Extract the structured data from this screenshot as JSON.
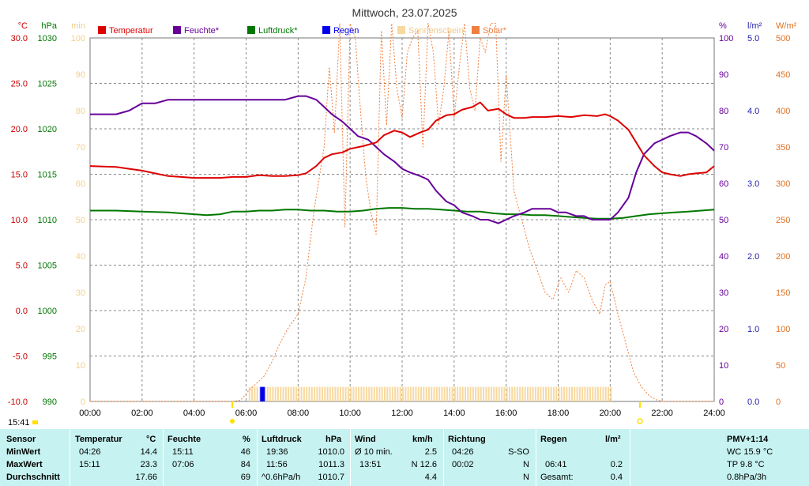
{
  "chart_data": {
    "type": "line",
    "title": "Mittwoch, 23.07.2025",
    "time_label": "15:41",
    "x_ticks": [
      "00:00",
      "02:00",
      "04:00",
      "06:00",
      "08:00",
      "10:00",
      "12:00",
      "14:00",
      "16:00",
      "18:00",
      "20:00",
      "22:00",
      "24:00"
    ],
    "axes": {
      "temp": {
        "unit": "°C",
        "range": [
          -10,
          30
        ],
        "ticks": [
          "30.0",
          "25.0",
          "20.0",
          "15.0",
          "10.0",
          "5.0",
          "0.0",
          "-5.0",
          "-10.0"
        ],
        "color": "#cc0000"
      },
      "press": {
        "unit": "hPa",
        "range": [
          990,
          1030
        ],
        "ticks": [
          "1030",
          "1025",
          "1020",
          "1015",
          "1010",
          "1005",
          "1000",
          "995",
          "990"
        ],
        "color": "#007700"
      },
      "sun": {
        "unit": "min",
        "range": [
          0,
          100
        ],
        "ticks": [
          "100",
          "90",
          "80",
          "70",
          "60",
          "50",
          "40",
          "30",
          "20",
          "10",
          "0"
        ],
        "color": "#f0d090"
      },
      "hum": {
        "unit": "%",
        "range": [
          0,
          100
        ],
        "ticks": [
          "100",
          "90",
          "80",
          "70",
          "60",
          "50",
          "40",
          "30",
          "20",
          "10",
          "0"
        ],
        "color": "#660099"
      },
      "rain": {
        "unit": "l/m²",
        "range": [
          0,
          5
        ],
        "ticks": [
          "5.0",
          "4.0",
          "3.0",
          "2.0",
          "1.0",
          "0.0"
        ],
        "color": "#2222aa"
      },
      "solar": {
        "unit": "W/m²",
        "range": [
          0,
          500
        ],
        "ticks": [
          "500",
          "450",
          "400",
          "350",
          "300",
          "250",
          "200",
          "150",
          "100",
          "50",
          "0"
        ],
        "color": "#e07020"
      }
    },
    "legend": [
      {
        "name": "Temperatur",
        "color": "#dd0000"
      },
      {
        "name": "Feuchte*",
        "color": "#660099"
      },
      {
        "name": "Luftdruck*",
        "color": "#007700"
      },
      {
        "name": "Regen",
        "color": "#0000ee"
      },
      {
        "name": "Sonnenschein",
        "color": "#f7d9a0"
      },
      {
        "name": "Solar*",
        "color": "#f08040"
      }
    ],
    "series": {
      "temperatur": {
        "color": "#dd0000",
        "x": [
          0,
          1,
          1.5,
          2,
          2.5,
          3,
          3.5,
          4,
          4.5,
          5,
          5.5,
          6,
          6.5,
          7,
          7.5,
          8,
          8.3,
          8.7,
          9,
          9.3,
          9.7,
          10,
          10.5,
          11,
          11.3,
          11.7,
          12,
          12.3,
          12.7,
          13,
          13.3,
          13.7,
          14,
          14.3,
          14.7,
          15,
          15.3,
          15.7,
          16,
          16.3,
          16.7,
          17,
          17.5,
          18,
          18.5,
          19,
          19.5,
          19.8,
          20,
          20.3,
          20.7,
          21,
          21.3,
          21.7,
          22,
          22.3,
          22.7,
          23,
          23.3,
          23.7,
          24
        ],
        "y": [
          15.9,
          15.8,
          15.6,
          15.4,
          15.1,
          14.8,
          14.7,
          14.6,
          14.6,
          14.6,
          14.7,
          14.7,
          14.9,
          14.8,
          14.8,
          14.9,
          15.1,
          15.9,
          16.8,
          17.2,
          17.4,
          17.8,
          18.1,
          18.5,
          19.3,
          19.8,
          19.6,
          19.1,
          19.6,
          19.9,
          20.9,
          21.5,
          21.6,
          22.1,
          22.4,
          22.9,
          22.0,
          22.2,
          21.6,
          21.2,
          21.2,
          21.3,
          21.3,
          21.4,
          21.3,
          21.5,
          21.4,
          21.6,
          21.4,
          20.9,
          19.9,
          18.5,
          17.1,
          15.9,
          15.2,
          15.0,
          14.8,
          15.0,
          15.1,
          15.2,
          15.9
        ]
      },
      "feuchte": {
        "color": "#660099",
        "x": [
          0,
          1,
          1.5,
          2,
          2.5,
          3,
          3.5,
          4,
          5,
          6,
          6.5,
          7,
          7.5,
          8,
          8.3,
          8.7,
          9,
          9.3,
          9.7,
          10,
          10.3,
          10.7,
          11,
          11.3,
          11.7,
          12,
          12.3,
          12.7,
          13,
          13.3,
          13.7,
          14,
          14.3,
          14.7,
          15,
          15.3,
          15.7,
          16,
          16.3,
          16.7,
          17,
          17.3,
          17.7,
          18,
          18.3,
          18.7,
          19,
          19.3,
          19.7,
          20,
          20.3,
          20.7,
          21,
          21.3,
          21.7,
          22,
          22.3,
          22.7,
          23,
          23.3,
          23.7,
          24
        ],
        "y": [
          79,
          79,
          80,
          82,
          82,
          83,
          83,
          83,
          83,
          83,
          83,
          83,
          83,
          84,
          84,
          83,
          81,
          79,
          77,
          75,
          73,
          72,
          70,
          68,
          66,
          64,
          63,
          62,
          61,
          58,
          55,
          54,
          52,
          51,
          50,
          50,
          49,
          50,
          51,
          52,
          53,
          53,
          53,
          52,
          52,
          51,
          51,
          50,
          50,
          50,
          52,
          56,
          63,
          68,
          71,
          72,
          73,
          74,
          74,
          73,
          71,
          69
        ]
      },
      "luftdruck": {
        "color": "#007700",
        "x": [
          0,
          1,
          2,
          3,
          4,
          4.5,
          5,
          5.5,
          6,
          6.5,
          7,
          7.5,
          8,
          8.5,
          9,
          9.5,
          10,
          10.5,
          11,
          11.5,
          12,
          12.5,
          13,
          13.5,
          14,
          14.5,
          15,
          15.5,
          16,
          16.5,
          17,
          17.5,
          18,
          18.5,
          19,
          19.5,
          20,
          20.5,
          21,
          21.5,
          22,
          22.5,
          23,
          23.5,
          24
        ],
        "y": [
          1011,
          1011,
          1010.9,
          1010.8,
          1010.6,
          1010.5,
          1010.6,
          1010.9,
          1010.9,
          1011,
          1011,
          1011.1,
          1011.1,
          1011,
          1011,
          1010.9,
          1010.9,
          1011,
          1011.2,
          1011.3,
          1011.3,
          1011.2,
          1011.2,
          1011.1,
          1011,
          1010.9,
          1010.9,
          1010.7,
          1010.6,
          1010.6,
          1010.5,
          1010.5,
          1010.4,
          1010.3,
          1010.2,
          1010.1,
          1010.1,
          1010.2,
          1010.4,
          1010.6,
          1010.7,
          1010.8,
          1010.9,
          1011,
          1011.1
        ]
      },
      "solar": {
        "color": "#f08040",
        "x": [
          0,
          5.5,
          5.8,
          6.1,
          6.4,
          6.7,
          7,
          7.3,
          7.6,
          8,
          8.3,
          8.6,
          9,
          9.2,
          9.4,
          9.6,
          9.8,
          10,
          10.2,
          10.4,
          10.6,
          10.8,
          11,
          11.2,
          11.4,
          11.6,
          11.8,
          12,
          12.2,
          12.4,
          12.6,
          12.8,
          13,
          13.2,
          13.4,
          13.6,
          13.8,
          14,
          14.2,
          14.4,
          14.6,
          14.8,
          15,
          15.2,
          15.4,
          15.6,
          15.8,
          16,
          16.3,
          16.6,
          16.9,
          17.2,
          17.5,
          17.8,
          18.1,
          18.4,
          18.7,
          19,
          19.3,
          19.6,
          19.8,
          20,
          20.3,
          20.6,
          20.9,
          21.2,
          21.5,
          21.8,
          22,
          24
        ],
        "y": [
          0,
          0,
          2,
          15,
          25,
          35,
          55,
          80,
          100,
          120,
          170,
          260,
          350,
          460,
          370,
          520,
          240,
          520,
          500,
          400,
          310,
          260,
          230,
          510,
          380,
          520,
          430,
          390,
          480,
          500,
          510,
          350,
          520,
          480,
          380,
          430,
          510,
          390,
          460,
          520,
          430,
          400,
          500,
          480,
          520,
          520,
          330,
          450,
          290,
          250,
          210,
          180,
          150,
          140,
          170,
          150,
          180,
          170,
          140,
          120,
          160,
          165,
          120,
          80,
          40,
          20,
          8,
          2,
          0,
          0
        ]
      },
      "regen": {
        "color": "#0000ee",
        "note": "Balken 06:41",
        "x": [
          6.63
        ],
        "y": [
          0.2
        ]
      },
      "sonnenschein": {
        "color": "#f7d9a0",
        "x_start": 6.1,
        "x_end": 20.1,
        "y": 4
      }
    }
  },
  "stats": {
    "headers": [
      {
        "label": "Sensor"
      },
      {
        "label": "Temperatur",
        "unit": "°C"
      },
      {
        "label": "Feuchte",
        "unit": "%"
      },
      {
        "label": "Luftdruck",
        "unit": "hPa"
      },
      {
        "label": "Wind",
        "unit": "km/h"
      },
      {
        "label": "Richtung"
      },
      {
        "label": "Regen",
        "unit": "l/m²"
      },
      {
        "label": "PMV+1:14"
      }
    ],
    "rows": [
      {
        "label": "MinWert",
        "temp_time": "04:26",
        "temp_val": "14.4",
        "hum_time": "15:11",
        "hum_val": "46",
        "press_time": "19:36",
        "press_val": "1010.0",
        "wind_time": "Ø 10 min.",
        "wind_val": "2.5",
        "dir_time": "04:26",
        "dir_val": "S-SO",
        "rain_time": "",
        "rain_val": "",
        "pmv": "WC 15.9 °C"
      },
      {
        "label": "MaxWert",
        "temp_time": "15:11",
        "temp_val": "23.3",
        "hum_time": "07:06",
        "hum_val": "84",
        "press_time": "11:56",
        "press_val": "1011.3",
        "wind_time": "13:51",
        "wind_val": "N 12.6",
        "dir_time": "00:02",
        "dir_val": "N",
        "rain_time": "06:41",
        "rain_val": "0.2",
        "pmv": "TP 9.8 °C"
      },
      {
        "label": "Durchschnitt",
        "temp_time": "",
        "temp_val": "17.66",
        "hum_time": "",
        "hum_val": "69",
        "press_time": "^0.6hPa/h",
        "press_val": "1010.7",
        "wind_time": "",
        "wind_val": "4.4",
        "dir_time": "",
        "dir_val": "N",
        "rain_time": "Gesamt:",
        "rain_val": "0.4",
        "pmv": "0.8hPa/3h"
      }
    ]
  }
}
